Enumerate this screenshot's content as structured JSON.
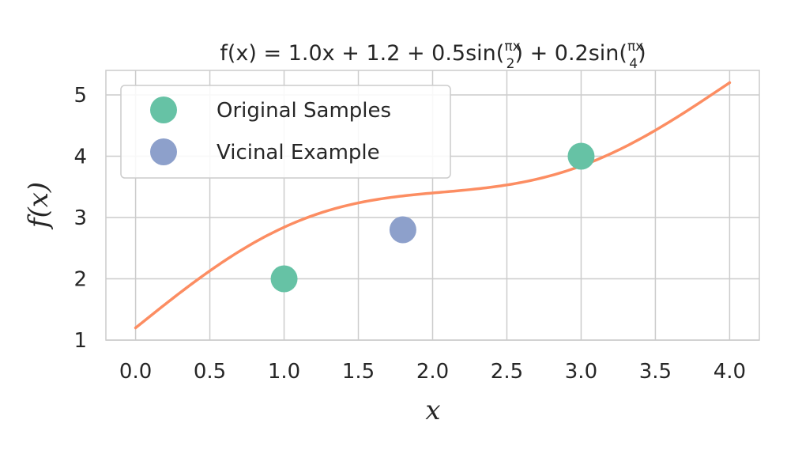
{
  "chart_data": {
    "type": "line",
    "title": "f(x) = 1.0x + 1.2 + 0.5sin(πx/2) + 0.2sin(πx/4)",
    "title_parts": {
      "lhs": "f(x) = 1.0x + 1.2 + 0.5sin(",
      "frac1_num": "πx",
      "frac1_den": "2",
      "mid": ") + 0.2sin(",
      "frac2_num": "πx",
      "frac2_den": "4",
      "end": ")"
    },
    "xlabel": "x",
    "ylabel": "f(x)",
    "xlim": [
      -0.2,
      4.2
    ],
    "ylim": [
      1.0,
      5.4
    ],
    "xticks": [
      "0.0",
      "0.5",
      "1.0",
      "1.5",
      "2.0",
      "2.5",
      "3.0",
      "3.5",
      "4.0"
    ],
    "yticks": [
      "1",
      "2",
      "3",
      "4",
      "5"
    ],
    "grid": true,
    "legend_position": "top-left",
    "function": {
      "name": "",
      "color": "#fc8d62",
      "x_range": [
        0,
        4
      ],
      "coefficients": {
        "slope": 1.0,
        "intercept": 1.2,
        "a1": 0.5,
        "a2": 0.2
      }
    },
    "series": [
      {
        "name": "Original Samples",
        "type": "scatter",
        "color": "#66c2a5",
        "points": [
          {
            "x": 1.0,
            "y": 2.0
          },
          {
            "x": 3.0,
            "y": 4.0
          }
        ]
      },
      {
        "name": "Vicinal Example",
        "type": "scatter",
        "color": "#8da0cb",
        "points": [
          {
            "x": 1.8,
            "y": 2.8
          }
        ]
      }
    ],
    "legend": [
      {
        "label": "Original Samples",
        "color": "#66c2a5"
      },
      {
        "label": "Vicinal Example",
        "color": "#8da0cb"
      }
    ]
  }
}
